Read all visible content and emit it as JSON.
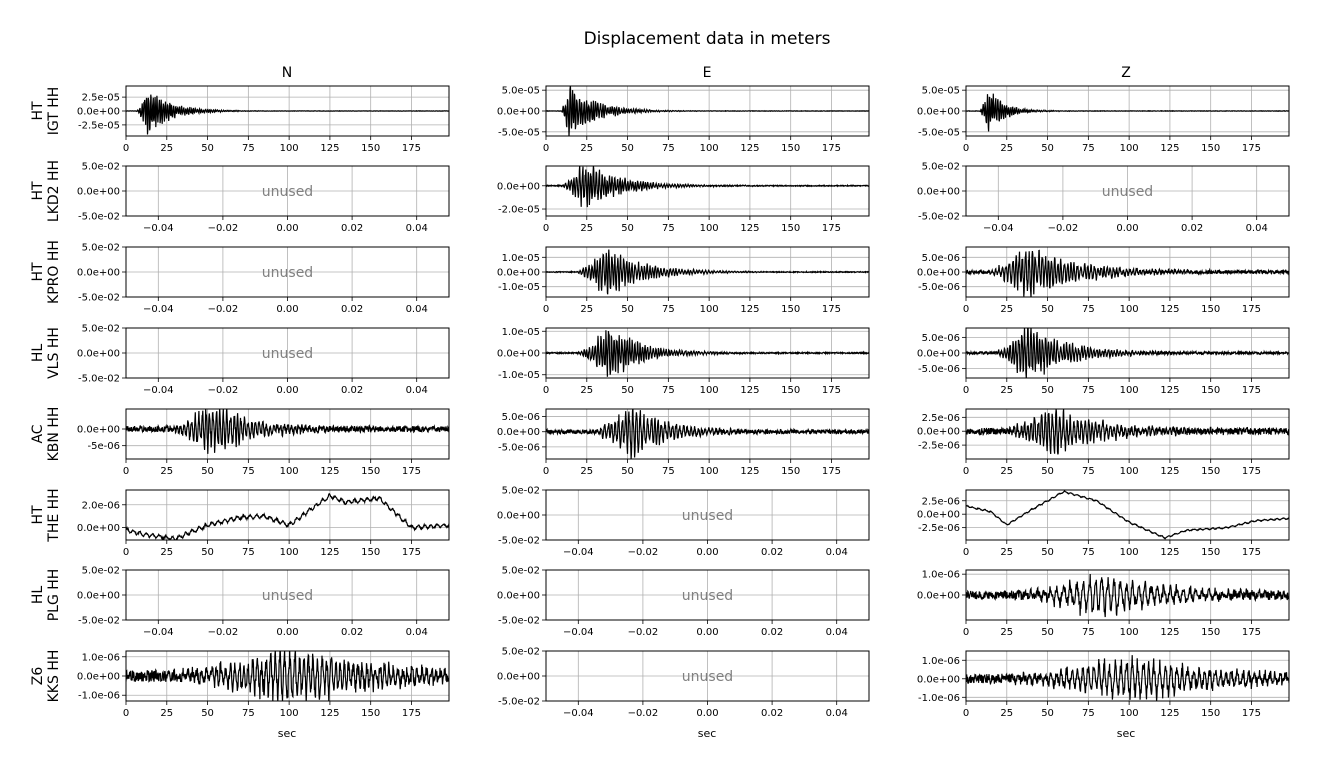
{
  "figure": {
    "title": "Displacement data in meters",
    "columns": [
      "N",
      "E",
      "Z"
    ],
    "xlabel": "sec",
    "unused_label": "unused"
  },
  "colors": {
    "trace": "#000000",
    "grid": "#b0b0b0",
    "unused_text": "#808080",
    "axes": "#000000"
  },
  "stations": [
    {
      "network": "HT",
      "name": "IGT HH"
    },
    {
      "network": "HT",
      "name": "LKD2 HH"
    },
    {
      "network": "HT",
      "name": "KPRO HH"
    },
    {
      "network": "HL",
      "name": "VLS HH"
    },
    {
      "network": "AC",
      "name": "KBN HH"
    },
    {
      "network": "HT",
      "name": "THE HH"
    },
    {
      "network": "HL",
      "name": "PLG HH"
    },
    {
      "network": "Z6",
      "name": "KKS HH"
    }
  ],
  "chart_data": {
    "type": "line",
    "description_free": true,
    "time_axis": {
      "xlim": [
        0,
        198
      ],
      "ticks": [
        0,
        25,
        50,
        75,
        100,
        125,
        150,
        175
      ],
      "tick_labels": [
        "0",
        "25",
        "50",
        "75",
        "100",
        "125",
        "150",
        "175"
      ]
    },
    "unused_axis": {
      "xlim": [
        -0.05,
        0.05
      ],
      "ylim": [
        -0.05,
        0.05
      ],
      "xticks": [
        -0.04,
        -0.02,
        0.0,
        0.02,
        0.04
      ],
      "xtick_labels": [
        "−0.04",
        "−0.02",
        "0.00",
        "0.02",
        "0.04"
      ],
      "yticks": [
        0.05,
        0.0,
        -0.05
      ],
      "ytick_labels": [
        "5.0e-02",
        "0.0e+00",
        "-5.0e-02"
      ]
    },
    "panels": [
      {
        "row": 0,
        "col": 0,
        "used": true,
        "ylim": [
          -4.5e-05,
          4.5e-05
        ],
        "yticks": [
          2.5e-05,
          0,
          -2.5e-05
        ],
        "ytick_labels": [
          "2.5e-05",
          "0.0e+00",
          "-2.5e-05"
        ],
        "trace": {
          "onset": 6,
          "peak": 13,
          "decay": 14,
          "amp": 3.2e-05,
          "noise": 3e-07,
          "freq": 1.6,
          "mode": "event"
        }
      },
      {
        "row": 0,
        "col": 1,
        "used": true,
        "ylim": [
          -6e-05,
          6e-05
        ],
        "yticks": [
          5e-05,
          0,
          -5e-05
        ],
        "ytick_labels": [
          "5.0e-05",
          "0.0e+00",
          "-5.0e-05"
        ],
        "trace": {
          "onset": 9,
          "peak": 14,
          "decay": 16,
          "amp": 5e-05,
          "noise": 5e-07,
          "freq": 1.4,
          "mode": "event"
        }
      },
      {
        "row": 0,
        "col": 2,
        "used": true,
        "ylim": [
          -6e-05,
          6e-05
        ],
        "yticks": [
          5e-05,
          0,
          -5e-05
        ],
        "ytick_labels": [
          "5.0e-05",
          "0.0e+00",
          "-5.0e-05"
        ],
        "trace": {
          "onset": 8,
          "peak": 14,
          "decay": 10,
          "amp": 4e-05,
          "noise": 5e-07,
          "freq": 1.5,
          "mode": "event"
        }
      },
      {
        "row": 1,
        "col": 0,
        "used": false
      },
      {
        "row": 1,
        "col": 1,
        "used": true,
        "ylim": [
          -2.6e-05,
          1.7e-05
        ],
        "yticks": [
          0,
          -2e-05
        ],
        "ytick_labels": [
          "0.0e+00",
          "-2.0e-05"
        ],
        "trace": {
          "onset": 8,
          "peak": 23,
          "decay": 22,
          "amp": 1.6e-05,
          "noise": 4e-07,
          "freq": 1.2,
          "mode": "event"
        }
      },
      {
        "row": 1,
        "col": 2,
        "used": false
      },
      {
        "row": 2,
        "col": 0,
        "used": false
      },
      {
        "row": 2,
        "col": 1,
        "used": true,
        "ylim": [
          -1.7e-05,
          1.7e-05
        ],
        "yticks": [
          1e-05,
          0,
          -1e-05
        ],
        "ytick_labels": [
          "1.0e-05",
          "0.0e+00",
          "-1.0e-05"
        ],
        "trace": {
          "onset": 17,
          "peak": 37,
          "decay": 22,
          "amp": 1.3e-05,
          "noise": 3e-07,
          "freq": 1.1,
          "mode": "event"
        }
      },
      {
        "row": 2,
        "col": 2,
        "used": true,
        "ylim": [
          -8.5e-06,
          8.5e-06
        ],
        "yticks": [
          5e-06,
          0,
          -5e-06
        ],
        "ytick_labels": [
          "5.0e-06",
          "0.0e+00",
          "-5.0e-06"
        ],
        "trace": {
          "onset": 12,
          "peak": 37,
          "decay": 30,
          "amp": 7e-06,
          "noise": 6e-07,
          "freq": 1.0,
          "mode": "event"
        }
      },
      {
        "row": 3,
        "col": 0,
        "used": false
      },
      {
        "row": 3,
        "col": 1,
        "used": true,
        "ylim": [
          -1.15e-05,
          1.15e-05
        ],
        "yticks": [
          1e-05,
          0,
          -1e-05
        ],
        "ytick_labels": [
          "1.0e-05",
          "0.0e+00",
          "-1.0e-05"
        ],
        "trace": {
          "onset": 18,
          "peak": 39,
          "decay": 18,
          "amp": 1e-05,
          "noise": 3e-07,
          "freq": 1.2,
          "mode": "event"
        }
      },
      {
        "row": 3,
        "col": 2,
        "used": true,
        "ylim": [
          -8e-06,
          8e-06
        ],
        "yticks": [
          5e-06,
          0,
          -5e-06
        ],
        "ytick_labels": [
          "5.0e-06",
          "0.0e+00",
          "-5.0e-06"
        ],
        "trace": {
          "onset": 16,
          "peak": 38,
          "decay": 24,
          "amp": 7e-06,
          "noise": 4e-07,
          "freq": 1.1,
          "mode": "event"
        }
      },
      {
        "row": 4,
        "col": 0,
        "used": true,
        "ylim": [
          -9e-06,
          6e-06
        ],
        "yticks": [
          0,
          -5e-06
        ],
        "ytick_labels": [
          "0.0e+00",
          "-5e-06"
        ],
        "trace": {
          "onset": 25,
          "peak": 52,
          "decay": 25,
          "amp": 6e-06,
          "noise": 9e-07,
          "freq": 0.9,
          "mode": "event"
        }
      },
      {
        "row": 4,
        "col": 1,
        "used": true,
        "ylim": [
          -9e-06,
          7.5e-06
        ],
        "yticks": [
          5e-06,
          0,
          -5e-06
        ],
        "ytick_labels": [
          "5.0e-06",
          "0.0e+00",
          "-5.0e-06"
        ],
        "trace": {
          "onset": 25,
          "peak": 53,
          "decay": 22,
          "amp": 6.5e-06,
          "noise": 7e-07,
          "freq": 0.9,
          "mode": "event"
        }
      },
      {
        "row": 4,
        "col": 2,
        "used": true,
        "ylim": [
          -5e-06,
          4e-06
        ],
        "yticks": [
          2.5e-06,
          0,
          -2.5e-06
        ],
        "ytick_labels": [
          "2.5e-06",
          "0.0e+00",
          "-2.5e-06"
        ],
        "trace": {
          "onset": 20,
          "peak": 52,
          "decay": 30,
          "amp": 3.5e-06,
          "noise": 6e-07,
          "freq": 0.9,
          "mode": "event"
        }
      },
      {
        "row": 5,
        "col": 0,
        "used": true,
        "ylim": [
          -1.1e-06,
          3.3e-06
        ],
        "yticks": [
          2e-06,
          0
        ],
        "ytick_labels": [
          "2.0e-06",
          "0.0e+00"
        ],
        "trace": {
          "amp": 1e-07,
          "noise": 1.5e-07,
          "freq": 0.5,
          "mode": "drift",
          "drift_t": [
            0,
            10,
            30,
            50,
            70,
            85,
            100,
            125,
            135,
            155,
            175,
            198
          ],
          "drift_v": [
            -2e-07,
            -6e-07,
            -1e-06,
            2e-07,
            9e-07,
            1e-06,
            2e-07,
            2.8e-06,
            2.2e-06,
            2.6e-06,
            0.0,
            2e-07
          ]
        }
      },
      {
        "row": 5,
        "col": 1,
        "used": false
      },
      {
        "row": 5,
        "col": 2,
        "used": true,
        "ylim": [
          -4.8e-06,
          4.5e-06
        ],
        "yticks": [
          2.5e-06,
          0,
          -2.5e-06
        ],
        "ytick_labels": [
          "2.5e-06",
          "0.0e+00",
          "-2.5e-06"
        ],
        "trace": {
          "amp": 1e-07,
          "noise": 1.2e-07,
          "freq": 0.5,
          "mode": "drift",
          "drift_t": [
            0,
            15,
            25,
            40,
            60,
            80,
            100,
            122,
            135,
            160,
            178,
            198
          ],
          "drift_v": [
            1.5e-06,
            5e-07,
            -2e-06,
            8e-07,
            4.2e-06,
            2.5e-06,
            -1.5e-06,
            -4.4e-06,
            -3e-06,
            -2.5e-06,
            -1.2e-06,
            -8e-07
          ]
        }
      },
      {
        "row": 6,
        "col": 0,
        "used": false
      },
      {
        "row": 6,
        "col": 1,
        "used": false
      },
      {
        "row": 6,
        "col": 2,
        "used": true,
        "ylim": [
          -1.2e-06,
          1.2e-06
        ],
        "yticks": [
          1e-06,
          0
        ],
        "ytick_labels": [
          "1.0e-06",
          "0.0e+00"
        ],
        "trace": {
          "onset": 20,
          "peak": 85,
          "decay": 40,
          "amp": 8e-07,
          "noise": 2e-07,
          "freq": 0.5,
          "mode": "event"
        }
      },
      {
        "row": 7,
        "col": 0,
        "used": true,
        "ylim": [
          -1.3e-06,
          1.3e-06
        ],
        "yticks": [
          1e-06,
          0,
          -1e-06
        ],
        "ytick_labels": [
          "1.0e-06",
          "0.0e+00",
          "-1.0e-06"
        ],
        "trace": {
          "onset": 10,
          "peak": 100,
          "decay": 70,
          "amp": 1e-06,
          "noise": 3e-07,
          "freq": 0.7,
          "mode": "event"
        }
      },
      {
        "row": 7,
        "col": 1,
        "used": false
      },
      {
        "row": 7,
        "col": 2,
        "used": true,
        "ylim": [
          -1.2e-06,
          1.5e-06
        ],
        "yticks": [
          1e-06,
          0,
          -1e-06
        ],
        "ytick_labels": [
          "1.0e-06",
          "0.0e+00",
          "-1.0e-06"
        ],
        "trace": {
          "onset": 10,
          "peak": 100,
          "decay": 60,
          "amp": 9e-07,
          "noise": 2.5e-07,
          "freq": 0.6,
          "mode": "event"
        }
      }
    ]
  }
}
